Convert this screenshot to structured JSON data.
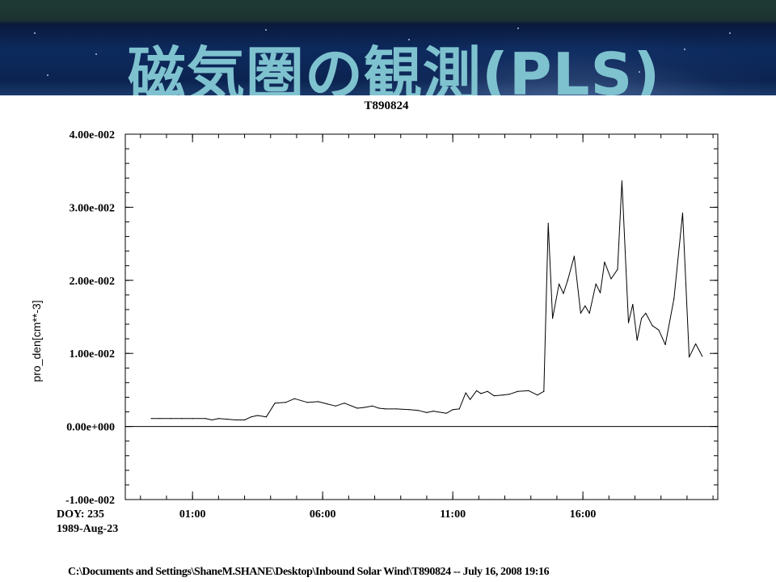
{
  "slide": {
    "title": "磁気圏の観測(PLS)"
  },
  "footer": {
    "file_caption": "C:\\Documents and Settings\\ShaneM.SHANE\\Desktop\\Inbound Solar Wind\\T890824 -- July 16, 2008 19:16"
  },
  "chart_data": {
    "type": "line",
    "title": "T890824",
    "xlabel": "",
    "ylabel": "pro_den[cm**-3]",
    "ylim": [
      -0.01,
      0.04
    ],
    "y_ticks": [
      {
        "value": 0.04,
        "label": "4.00e-002"
      },
      {
        "value": 0.03,
        "label": "3.00e-002"
      },
      {
        "value": 0.02,
        "label": "2.00e-002"
      },
      {
        "value": 0.01,
        "label": "1.00e-002"
      },
      {
        "value": 0.0,
        "label": "0.00e+000"
      },
      {
        "value": -0.01,
        "label": "-1.00e-002"
      }
    ],
    "y_minor_step": 0.002,
    "xlim": [
      "-01:35",
      "21:11"
    ],
    "x_ticks": [
      "01:00",
      "06:00",
      "11:00",
      "16:00"
    ],
    "x_minor_step_hours": 1,
    "x_origin_labels": [
      "DOY: 235",
      "1989-Aug-23"
    ],
    "zero_line": true,
    "grid": false,
    "series": [
      {
        "color": "#000000",
        "x": [
          "-00:35",
          "-00:15",
          "00:10",
          "00:35",
          "01:00",
          "01:30",
          "01:45",
          "02:00",
          "02:20",
          "02:40",
          "03:00",
          "03:15",
          "03:30",
          "03:50",
          "04:10",
          "04:35",
          "04:55",
          "05:25",
          "05:50",
          "06:10",
          "06:30",
          "06:50",
          "07:20",
          "07:35",
          "07:55",
          "08:10",
          "08:25",
          "08:50",
          "09:20",
          "09:40",
          "10:00",
          "10:15",
          "10:45",
          "11:00",
          "11:15",
          "11:30",
          "11:40",
          "11:55",
          "12:05",
          "12:20",
          "12:35",
          "12:55",
          "13:10",
          "13:30",
          "13:55",
          "14:15",
          "14:30",
          "14:40",
          "14:50",
          "15:05",
          "15:15",
          "15:25",
          "15:40",
          "15:55",
          "16:05",
          "16:15",
          "16:30",
          "16:40",
          "16:50",
          "17:05",
          "17:20",
          "17:30",
          "17:45",
          "17:55",
          "18:05",
          "18:15",
          "18:25",
          "18:40",
          "18:55",
          "19:10",
          "19:30",
          "19:50",
          "20:05",
          "20:20",
          "20:30",
          "20:35"
        ],
        "values": [
          0.0011,
          0.0011,
          0.0011,
          0.0011,
          0.0011,
          0.0011,
          0.0009,
          0.0011,
          0.001,
          0.0009,
          0.0009,
          0.0013,
          0.0015,
          0.0013,
          0.0032,
          0.0033,
          0.0038,
          0.0033,
          0.0034,
          0.0031,
          0.0028,
          0.0032,
          0.0025,
          0.0026,
          0.0028,
          0.0025,
          0.0024,
          0.0024,
          0.0023,
          0.0022,
          0.0019,
          0.0021,
          0.0018,
          0.0023,
          0.0024,
          0.0046,
          0.0037,
          0.0049,
          0.0045,
          0.0048,
          0.0042,
          0.0043,
          0.0044,
          0.0048,
          0.0049,
          0.0043,
          0.0048,
          0.0278,
          0.0148,
          0.0195,
          0.0182,
          0.02,
          0.0233,
          0.0155,
          0.0165,
          0.0155,
          0.0195,
          0.0183,
          0.0225,
          0.0202,
          0.0215,
          0.0336,
          0.0142,
          0.0167,
          0.0118,
          0.0148,
          0.0155,
          0.0138,
          0.0132,
          0.0112,
          0.0175,
          0.0292,
          0.0095,
          0.0113,
          0.0102,
          0.0096
        ]
      }
    ]
  }
}
